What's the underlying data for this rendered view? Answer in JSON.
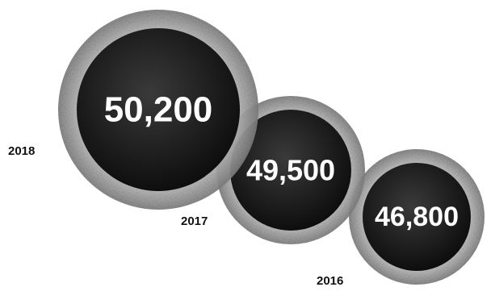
{
  "chart_data": {
    "type": "bubble",
    "categories": [
      "2018",
      "2017",
      "2016"
    ],
    "values": [
      50200,
      49500,
      46800
    ],
    "value_labels": [
      "50,200",
      "49,500",
      "46,800"
    ],
    "title": "",
    "legend": "none",
    "grid": false
  },
  "colors": {
    "disc_fill": "#1c1c1c",
    "ring": "#d8d8d8",
    "ring_shadow": "#8a8a8a",
    "value_text": "#ffffff",
    "year_text": "#111111"
  }
}
